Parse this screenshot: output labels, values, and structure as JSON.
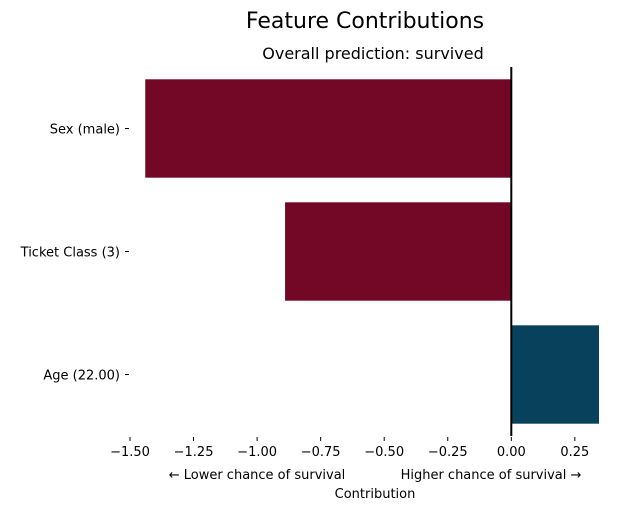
{
  "chart_data": {
    "type": "bar",
    "orientation": "horizontal",
    "title": "Feature Contributions",
    "subtitle": "Overall prediction: survived",
    "xlabel": "Contribution",
    "x_direction_labels": {
      "negative": "←  Lower chance of survival",
      "positive": "Higher chance of survival  →"
    },
    "categories": [
      "Sex (male)",
      "Ticket Class (3)",
      "Age (22.00)"
    ],
    "values": [
      -1.44,
      -0.89,
      0.345
    ],
    "colors": {
      "negative": "#730726",
      "positive": "#08415c"
    },
    "xlim": [
      -1.5,
      0.345
    ],
    "xticks": [
      -1.5,
      -1.25,
      -1.0,
      -0.75,
      -0.5,
      -0.25,
      0.0,
      0.25
    ],
    "xtick_labels": [
      "−1.50",
      "−1.25",
      "−1.00",
      "−0.75",
      "−0.50",
      "−0.25",
      "0.00",
      "0.25"
    ],
    "zero_line": true,
    "grid": false
  }
}
